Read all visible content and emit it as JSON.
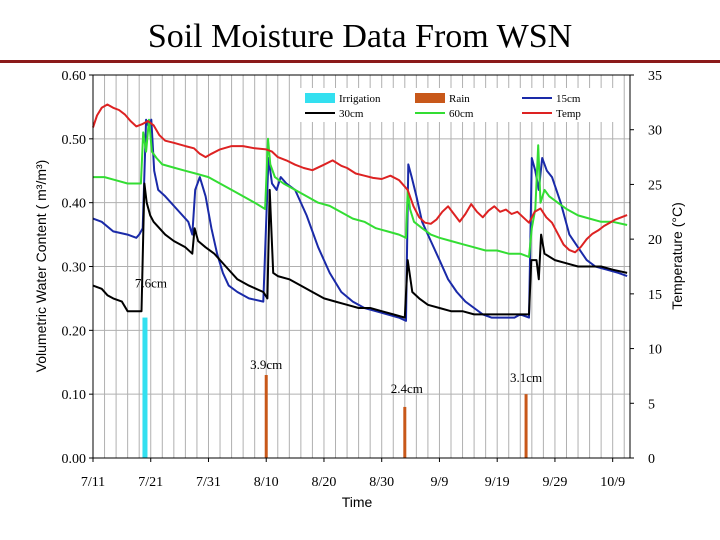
{
  "slide": {
    "title": "Soil Moisture Data From WSN"
  },
  "chart_data": {
    "type": "line",
    "title": "Soil Moisture Data From WSN",
    "xlabel": "Time",
    "ylabel": "Volumetric Water Content ( m³/m³)",
    "y2label": "Temperature (°C)",
    "x_domain": [
      0,
      93
    ],
    "ylim": [
      0,
      0.6
    ],
    "y2lim": [
      0,
      35
    ],
    "x_ticks": [
      {
        "x": 0,
        "label": "7/11"
      },
      {
        "x": 10,
        "label": "7/21"
      },
      {
        "x": 20,
        "label": "7/31"
      },
      {
        "x": 30,
        "label": "8/10"
      },
      {
        "x": 40,
        "label": "8/20"
      },
      {
        "x": 50,
        "label": "8/30"
      },
      {
        "x": 60,
        "label": "9/9"
      },
      {
        "x": 70,
        "label": "9/19"
      },
      {
        "x": 80,
        "label": "9/29"
      },
      {
        "x": 90,
        "label": "10/9"
      }
    ],
    "y_ticks": [
      {
        "v": 0,
        "label": "0.00"
      },
      {
        "v": 0.1,
        "label": "0.10"
      },
      {
        "v": 0.2,
        "label": "0.20"
      },
      {
        "v": 0.3,
        "label": "0.30"
      },
      {
        "v": 0.4,
        "label": "0.40"
      },
      {
        "v": 0.5,
        "label": "0.50"
      },
      {
        "v": 0.6,
        "label": "0.60"
      }
    ],
    "y2_ticks": [
      {
        "v": 0,
        "label": "0"
      },
      {
        "v": 5,
        "label": "5"
      },
      {
        "v": 10,
        "label": "10"
      },
      {
        "v": 15,
        "label": "15"
      },
      {
        "v": 20,
        "label": "20"
      },
      {
        "v": 25,
        "label": "25"
      },
      {
        "v": 30,
        "label": "30"
      },
      {
        "v": 35,
        "label": "35"
      }
    ],
    "legend": [
      {
        "name": "Irrigation",
        "color": "#33e0f0",
        "type": "bar"
      },
      {
        "name": "Rain",
        "color": "#c8581a",
        "type": "bar"
      },
      {
        "name": "15cm",
        "color": "#1a2aa8",
        "type": "line"
      },
      {
        "name": "30cm",
        "color": "#000000",
        "type": "line"
      },
      {
        "name": "60cm",
        "color": "#33dd33",
        "type": "line"
      },
      {
        "name": "Temp",
        "color": "#dd2222",
        "type": "line"
      }
    ],
    "events": [
      {
        "type": "Irrigation",
        "x": 9,
        "value": 0.22,
        "label": "7.6cm"
      },
      {
        "type": "Rain",
        "x": 30,
        "value": 0.13,
        "label": "3.9cm"
      },
      {
        "type": "Rain",
        "x": 54,
        "value": 0.08,
        "label": "2.4cm"
      },
      {
        "type": "Rain",
        "x": 75,
        "value": 0.1,
        "label": "3.1cm"
      }
    ],
    "series": [
      {
        "name": "15cm",
        "axis": "left",
        "color": "#1a2aa8",
        "points": [
          [
            0,
            0.375
          ],
          [
            1.5,
            0.37
          ],
          [
            3.5,
            0.355
          ],
          [
            6,
            0.35
          ],
          [
            7.5,
            0.345
          ],
          [
            8,
            0.35
          ],
          [
            8.6,
            0.36
          ],
          [
            9.2,
            0.53
          ],
          [
            9.6,
            0.52
          ],
          [
            10.1,
            0.53
          ],
          [
            10.6,
            0.45
          ],
          [
            11.3,
            0.42
          ],
          [
            12.5,
            0.41
          ],
          [
            14.5,
            0.39
          ],
          [
            16.5,
            0.37
          ],
          [
            17.2,
            0.35
          ],
          [
            17.7,
            0.42
          ],
          [
            18.5,
            0.44
          ],
          [
            19.5,
            0.41
          ],
          [
            20.5,
            0.36
          ],
          [
            21.5,
            0.32
          ],
          [
            22.5,
            0.29
          ],
          [
            23.5,
            0.27
          ],
          [
            25,
            0.26
          ],
          [
            27,
            0.25
          ],
          [
            29.5,
            0.245
          ],
          [
            30.4,
            0.47
          ],
          [
            31,
            0.43
          ],
          [
            31.8,
            0.42
          ],
          [
            32.5,
            0.44
          ],
          [
            33.5,
            0.43
          ],
          [
            35,
            0.42
          ],
          [
            37,
            0.38
          ],
          [
            39,
            0.33
          ],
          [
            41,
            0.29
          ],
          [
            43,
            0.26
          ],
          [
            45,
            0.245
          ],
          [
            47,
            0.235
          ],
          [
            49,
            0.23
          ],
          [
            51,
            0.225
          ],
          [
            53,
            0.22
          ],
          [
            54.2,
            0.215
          ],
          [
            54.6,
            0.46
          ],
          [
            55.2,
            0.44
          ],
          [
            56,
            0.41
          ],
          [
            57,
            0.37
          ],
          [
            58.5,
            0.34
          ],
          [
            60,
            0.31
          ],
          [
            61.5,
            0.28
          ],
          [
            63,
            0.26
          ],
          [
            64.5,
            0.245
          ],
          [
            66,
            0.235
          ],
          [
            67.5,
            0.225
          ],
          [
            69,
            0.22
          ],
          [
            71,
            0.22
          ],
          [
            73,
            0.22
          ],
          [
            74,
            0.225
          ],
          [
            75.5,
            0.22
          ],
          [
            76,
            0.47
          ],
          [
            76.6,
            0.45
          ],
          [
            77.2,
            0.42
          ],
          [
            77.8,
            0.47
          ],
          [
            78.6,
            0.45
          ],
          [
            79.5,
            0.44
          ],
          [
            81,
            0.4
          ],
          [
            82.5,
            0.35
          ],
          [
            84,
            0.33
          ],
          [
            85.5,
            0.31
          ],
          [
            87,
            0.3
          ],
          [
            89,
            0.295
          ],
          [
            91,
            0.29
          ],
          [
            92.5,
            0.285
          ]
        ]
      },
      {
        "name": "30cm",
        "axis": "left",
        "color": "#000000",
        "points": [
          [
            0,
            0.27
          ],
          [
            1.5,
            0.265
          ],
          [
            2.5,
            0.255
          ],
          [
            3.5,
            0.25
          ],
          [
            5,
            0.245
          ],
          [
            6,
            0.23
          ],
          [
            7.5,
            0.23
          ],
          [
            8.4,
            0.23
          ],
          [
            8.9,
            0.43
          ],
          [
            9.3,
            0.4
          ],
          [
            9.9,
            0.38
          ],
          [
            10.5,
            0.37
          ],
          [
            11.5,
            0.36
          ],
          [
            12.5,
            0.35
          ],
          [
            14,
            0.34
          ],
          [
            16,
            0.33
          ],
          [
            17.2,
            0.32
          ],
          [
            17.6,
            0.36
          ],
          [
            18.2,
            0.34
          ],
          [
            19.5,
            0.33
          ],
          [
            21,
            0.32
          ],
          [
            23,
            0.3
          ],
          [
            25,
            0.28
          ],
          [
            27,
            0.27
          ],
          [
            29.5,
            0.26
          ],
          [
            30.2,
            0.25
          ],
          [
            30.6,
            0.42
          ],
          [
            31.2,
            0.29
          ],
          [
            32,
            0.285
          ],
          [
            34,
            0.28
          ],
          [
            36,
            0.27
          ],
          [
            38,
            0.26
          ],
          [
            40,
            0.25
          ],
          [
            42,
            0.245
          ],
          [
            44,
            0.24
          ],
          [
            46,
            0.235
          ],
          [
            48,
            0.235
          ],
          [
            50,
            0.23
          ],
          [
            52,
            0.225
          ],
          [
            54,
            0.22
          ],
          [
            54.5,
            0.31
          ],
          [
            55.3,
            0.26
          ],
          [
            56.5,
            0.25
          ],
          [
            58,
            0.24
          ],
          [
            60,
            0.235
          ],
          [
            62,
            0.23
          ],
          [
            64,
            0.23
          ],
          [
            66,
            0.225
          ],
          [
            68,
            0.225
          ],
          [
            70,
            0.225
          ],
          [
            72,
            0.225
          ],
          [
            74,
            0.225
          ],
          [
            75.5,
            0.225
          ],
          [
            75.9,
            0.31
          ],
          [
            76.8,
            0.31
          ],
          [
            77.2,
            0.28
          ],
          [
            77.6,
            0.35
          ],
          [
            78.2,
            0.32
          ],
          [
            80,
            0.31
          ],
          [
            82,
            0.305
          ],
          [
            84,
            0.3
          ],
          [
            86,
            0.3
          ],
          [
            88,
            0.3
          ],
          [
            90,
            0.295
          ],
          [
            92.5,
            0.29
          ]
        ]
      },
      {
        "name": "60cm",
        "axis": "left",
        "color": "#33dd33",
        "points": [
          [
            0,
            0.44
          ],
          [
            2,
            0.44
          ],
          [
            4,
            0.435
          ],
          [
            6,
            0.43
          ],
          [
            7.5,
            0.43
          ],
          [
            8.3,
            0.43
          ],
          [
            8.7,
            0.51
          ],
          [
            9.2,
            0.48
          ],
          [
            9.7,
            0.53
          ],
          [
            10.2,
            0.48
          ],
          [
            11,
            0.47
          ],
          [
            12,
            0.46
          ],
          [
            14,
            0.455
          ],
          [
            16,
            0.45
          ],
          [
            18,
            0.445
          ],
          [
            20,
            0.44
          ],
          [
            22,
            0.43
          ],
          [
            24,
            0.42
          ],
          [
            26,
            0.41
          ],
          [
            28,
            0.4
          ],
          [
            29.8,
            0.39
          ],
          [
            30.3,
            0.5
          ],
          [
            30.7,
            0.46
          ],
          [
            31.5,
            0.44
          ],
          [
            33,
            0.43
          ],
          [
            35,
            0.42
          ],
          [
            37,
            0.41
          ],
          [
            39,
            0.4
          ],
          [
            41,
            0.395
          ],
          [
            43,
            0.385
          ],
          [
            45,
            0.375
          ],
          [
            47,
            0.37
          ],
          [
            49,
            0.36
          ],
          [
            51,
            0.355
          ],
          [
            53,
            0.35
          ],
          [
            54.2,
            0.345
          ],
          [
            54.5,
            0.42
          ],
          [
            54.9,
            0.39
          ],
          [
            55.6,
            0.37
          ],
          [
            57,
            0.36
          ],
          [
            58.5,
            0.35
          ],
          [
            60,
            0.345
          ],
          [
            62,
            0.34
          ],
          [
            64,
            0.335
          ],
          [
            66,
            0.33
          ],
          [
            68,
            0.325
          ],
          [
            70,
            0.325
          ],
          [
            72,
            0.32
          ],
          [
            74,
            0.32
          ],
          [
            75.5,
            0.315
          ],
          [
            76,
            0.36
          ],
          [
            76.6,
            0.39
          ],
          [
            77.1,
            0.49
          ],
          [
            77.5,
            0.4
          ],
          [
            78.2,
            0.42
          ],
          [
            79,
            0.41
          ],
          [
            80.5,
            0.4
          ],
          [
            82,
            0.39
          ],
          [
            84,
            0.38
          ],
          [
            86,
            0.375
          ],
          [
            88,
            0.37
          ],
          [
            90,
            0.37
          ],
          [
            92.5,
            0.365
          ]
        ]
      },
      {
        "name": "Temp",
        "axis": "right",
        "color": "#dd2222",
        "points": [
          [
            0,
            30.2
          ],
          [
            0.7,
            31.3
          ],
          [
            1.5,
            32
          ],
          [
            2.5,
            32.3
          ],
          [
            3.5,
            32
          ],
          [
            4.5,
            31.8
          ],
          [
            5.5,
            31.4
          ],
          [
            6.5,
            30.8
          ],
          [
            7.5,
            30.3
          ],
          [
            8.5,
            30.5
          ],
          [
            9.5,
            30.8
          ],
          [
            10.5,
            30.4
          ],
          [
            11.5,
            29.5
          ],
          [
            12.5,
            29
          ],
          [
            14,
            28.8
          ],
          [
            16,
            28.5
          ],
          [
            17.5,
            28.3
          ],
          [
            18.5,
            27.8
          ],
          [
            19.5,
            27.5
          ],
          [
            20.5,
            27.8
          ],
          [
            22,
            28.2
          ],
          [
            24,
            28.5
          ],
          [
            26,
            28.5
          ],
          [
            28,
            28.3
          ],
          [
            30,
            28.2
          ],
          [
            31,
            28
          ],
          [
            32,
            27.5
          ],
          [
            33.5,
            27.2
          ],
          [
            35,
            26.8
          ],
          [
            36.5,
            26.5
          ],
          [
            38,
            26.3
          ],
          [
            40,
            26.8
          ],
          [
            41.5,
            27.2
          ],
          [
            43,
            26.7
          ],
          [
            44,
            26.5
          ],
          [
            45.5,
            26
          ],
          [
            47,
            25.8
          ],
          [
            48.5,
            25.6
          ],
          [
            50,
            25.5
          ],
          [
            51.5,
            25.8
          ],
          [
            53,
            25.4
          ],
          [
            54.5,
            24.5
          ],
          [
            55.5,
            23
          ],
          [
            56.5,
            22
          ],
          [
            57.5,
            21.5
          ],
          [
            58.5,
            21.4
          ],
          [
            59.5,
            21.8
          ],
          [
            60.5,
            22.5
          ],
          [
            61.5,
            23
          ],
          [
            62.5,
            22.3
          ],
          [
            63.5,
            21.6
          ],
          [
            64.5,
            22.3
          ],
          [
            65.5,
            23.2
          ],
          [
            66.5,
            22.5
          ],
          [
            67.5,
            22
          ],
          [
            68.5,
            22.6
          ],
          [
            69.5,
            23
          ],
          [
            70.5,
            22.5
          ],
          [
            71.5,
            22.7
          ],
          [
            72.5,
            22.3
          ],
          [
            73.5,
            22.5
          ],
          [
            74.5,
            22
          ],
          [
            75.5,
            21.5
          ],
          [
            76.5,
            22.5
          ],
          [
            77.5,
            22.8
          ],
          [
            78.5,
            22
          ],
          [
            79.5,
            21.5
          ],
          [
            80.5,
            20.5
          ],
          [
            81.5,
            19.5
          ],
          [
            82.5,
            19
          ],
          [
            83.5,
            18.8
          ],
          [
            84.5,
            19.3
          ],
          [
            85.5,
            20
          ],
          [
            86.5,
            20.5
          ],
          [
            87.5,
            20.8
          ],
          [
            88.5,
            21.2
          ],
          [
            89.5,
            21.5
          ],
          [
            90.5,
            21.8
          ],
          [
            91.5,
            22
          ],
          [
            92.5,
            22.2
          ]
        ]
      }
    ]
  }
}
